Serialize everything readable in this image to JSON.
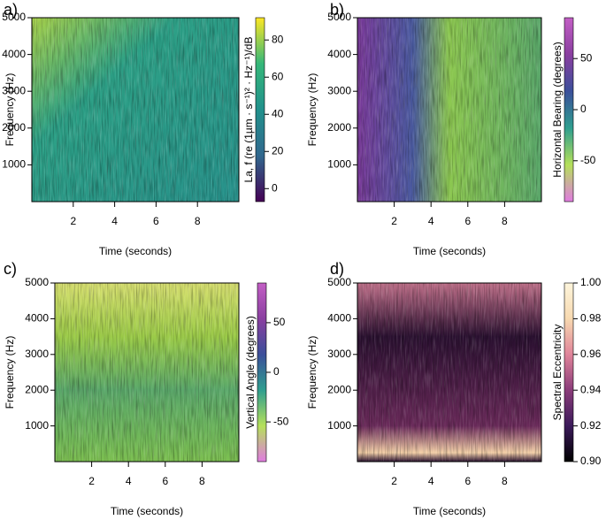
{
  "chart_data": [
    {
      "type": "spectrogram",
      "panel_label": "a)",
      "xlabel": "Time (seconds)",
      "ylabel": "Frequency (Hz)",
      "xlim": [
        0,
        10
      ],
      "xticks": [
        2,
        4,
        6,
        8
      ],
      "ylim": [
        0,
        5000
      ],
      "yticks": [
        1000,
        2000,
        3000,
        4000,
        5000
      ],
      "colorbar": {
        "label": "La, f (re (1µm · s⁻¹)² · Hz⁻¹)/dB",
        "lim": [
          -7,
          92
        ],
        "ticks": [
          0,
          20,
          40,
          60,
          80
        ],
        "colors": [
          "#440154",
          "#31688e",
          "#21918c",
          "#35b779",
          "#fde725"
        ]
      }
    },
    {
      "type": "spectrogram",
      "panel_label": "b)",
      "xlabel": "Time (seconds)",
      "ylabel": "Frequency (Hz)",
      "xlim": [
        0,
        10
      ],
      "xticks": [
        2,
        4,
        6,
        8
      ],
      "ylim": [
        0,
        5000
      ],
      "yticks": [
        1000,
        2000,
        3000,
        4000,
        5000
      ],
      "colorbar": {
        "label": "Horizontal Bearing (degrees)",
        "lim": [
          -90,
          90
        ],
        "ticks": [
          -50,
          0,
          50
        ],
        "colors": [
          "#e07be0",
          "#b5e05a",
          "#2f9e8f",
          "#3b4f9a",
          "#8a3fa0",
          "#c35fc5"
        ]
      }
    },
    {
      "type": "spectrogram",
      "panel_label": "c)",
      "xlabel": "Time (seconds)",
      "ylabel": "Frequency (Hz)",
      "xlim": [
        0,
        10
      ],
      "xticks": [
        2,
        4,
        6,
        8
      ],
      "ylim": [
        0,
        5000
      ],
      "yticks": [
        1000,
        2000,
        3000,
        4000,
        5000
      ],
      "colorbar": {
        "label": "Vertical Angle (degrees)",
        "lim": [
          -90,
          90
        ],
        "ticks": [
          -50,
          0,
          50
        ],
        "colors": [
          "#e07be0",
          "#b5e05a",
          "#2f9e8f",
          "#3b4f9a",
          "#8a3fa0",
          "#c35fc5"
        ]
      }
    },
    {
      "type": "spectrogram",
      "panel_label": "d)",
      "xlabel": "Time (seconds)",
      "ylabel": "Frequency (Hz)",
      "xlim": [
        0,
        10
      ],
      "xticks": [
        2,
        4,
        6,
        8
      ],
      "ylim": [
        0,
        5000
      ],
      "yticks": [
        1000,
        2000,
        3000,
        4000,
        5000
      ],
      "colorbar": {
        "label": "Spectral Eccentricity",
        "lim": [
          0.9,
          1
        ],
        "ticks": [
          {
            "value": 0.9,
            "label": "0.90"
          },
          0.92,
          0.94,
          0.96,
          0.98,
          {
            "value": 1,
            "label": "1.00"
          }
        ],
        "colors": [
          "#000000",
          "#3b1a5a",
          "#8a3c7a",
          "#e0849a",
          "#f7d9b0",
          "#fdf5dc"
        ]
      }
    }
  ]
}
